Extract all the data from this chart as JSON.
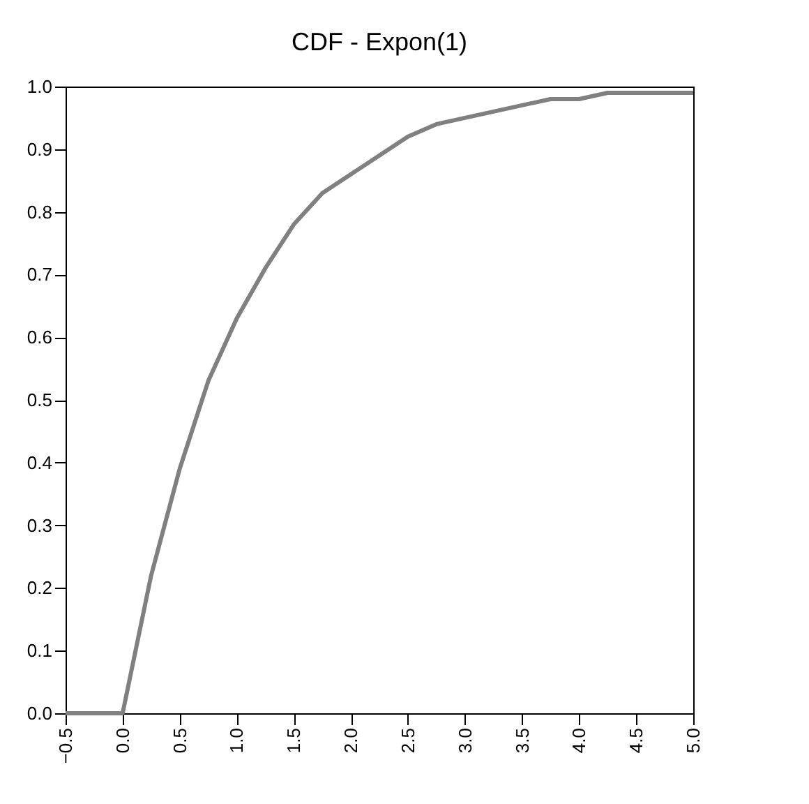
{
  "chart_data": {
    "type": "line",
    "title": "CDF - Expon(1)",
    "x": [
      -0.5,
      0,
      0.25,
      0.5,
      0.75,
      1,
      1.25,
      1.5,
      1.75,
      2,
      2.25,
      2.5,
      2.75,
      3,
      3.25,
      3.5,
      3.75,
      4,
      4.25,
      4.5,
      4.75,
      5
    ],
    "series": [
      {
        "color": "#808080",
        "values": [
          0,
          0,
          0.22,
          0.39,
          0.53,
          0.63,
          0.71,
          0.78,
          0.83,
          0.86,
          0.89,
          0.92,
          0.94,
          0.95,
          0.96,
          0.97,
          0.98,
          0.98,
          0.99,
          0.99,
          0.99,
          0.99
        ]
      }
    ],
    "xlim": [
      -0.5,
      5
    ],
    "xticks": [
      -0.5,
      {
        "value": 0,
        "label": "0.0"
      },
      0.5,
      {
        "value": 1,
        "label": "1.0"
      },
      1.5,
      {
        "value": 2,
        "label": "2.0"
      },
      2.5,
      {
        "value": 3,
        "label": "3.0"
      },
      3.5,
      {
        "value": 4,
        "label": "4.0"
      },
      4.5,
      {
        "value": 5,
        "label": "5.0"
      }
    ],
    "ylim": [
      0,
      1
    ],
    "yticks": [
      {
        "value": 0,
        "label": "0.0"
      },
      0.1,
      0.2,
      0.3,
      0.4,
      0.5,
      0.6,
      0.7,
      0.8,
      0.9,
      {
        "value": 1,
        "label": "1.0"
      }
    ],
    "grid": false,
    "legend": false,
    "marker": "none",
    "line_style": "solid"
  }
}
